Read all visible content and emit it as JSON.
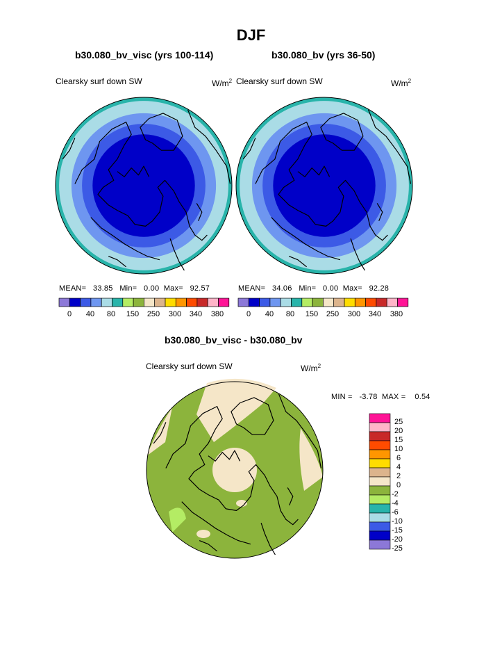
{
  "page": {
    "title": "DJF",
    "panels": [
      {
        "subtitle": "b30.080_bv_visc (yrs 100-114)",
        "field": "Clearsky surf down SW",
        "units": "W/m",
        "units_exp": "2",
        "stats": {
          "mean_label": "MEAN=",
          "mean": "33.85",
          "min_label": "Min=",
          "min": "0.00",
          "max_label": "Max=",
          "max": "92.57"
        }
      },
      {
        "subtitle": "b30.080_bv (yrs 36-50)",
        "field": "Clearsky surf down SW",
        "units": "W/m",
        "units_exp": "2",
        "stats": {
          "mean_label": "MEAN=",
          "mean": "34.06",
          "min_label": "Min=",
          "min": "0.00",
          "max_label": "Max=",
          "max": "92.28"
        }
      }
    ],
    "diff_panel": {
      "subtitle": "b30.080_bv_visc - b30.080_bv",
      "field": "Clearsky surf down SW",
      "units": "W/m",
      "units_exp": "2",
      "stats": {
        "min_label": "MIN =",
        "min": "-3.78",
        "max_label": "MAX =",
        "max": "0.54"
      }
    }
  },
  "colors": {
    "abs_scale": [
      "#8c78d8",
      "#0000c8",
      "#3c5ae6",
      "#6e96f0",
      "#aadce6",
      "#28b4aa",
      "#b4ec64",
      "#8cb43c",
      "#f5e6c8",
      "#dcb48c",
      "#ffdc00",
      "#ff9600",
      "#ff4b00",
      "#c82828",
      "#ffb4c8",
      "#ff1496"
    ],
    "diff_scale": [
      "#8c78d8",
      "#0000c8",
      "#3c5ae6",
      "#aadce6",
      "#28b4aa",
      "#b4ec64",
      "#8cb43c",
      "#f5e6c8",
      "#dcb48c",
      "#ffdc00",
      "#ff9600",
      "#ff4b00",
      "#c82828",
      "#ffb4c8",
      "#ff1496"
    ],
    "land_line": "#000000"
  },
  "chart_data": [
    {
      "type": "heatmap",
      "projection": "polar stereographic (north)",
      "title": "b30.080_bv_visc (yrs 100-114)",
      "variable": "Clearsky surf down SW",
      "units": "W/m2",
      "colorbar_ticks": [
        "0",
        "40",
        "80",
        "150",
        "250",
        "300",
        "340",
        "380"
      ],
      "levels_W_m2": [
        0,
        20,
        40,
        60,
        80,
        100,
        150,
        200,
        250,
        275,
        300,
        320,
        340,
        360,
        380
      ],
      "rings_from_pole": [
        "0 (dark blue)",
        "20-40",
        "40-60",
        "60-80",
        "80-100"
      ],
      "mean": 33.85,
      "min": 0.0,
      "max": 92.57
    },
    {
      "type": "heatmap",
      "projection": "polar stereographic (north)",
      "title": "b30.080_bv (yrs 36-50)",
      "variable": "Clearsky surf down SW",
      "units": "W/m2",
      "colorbar_ticks": [
        "0",
        "40",
        "80",
        "150",
        "250",
        "300",
        "340",
        "380"
      ],
      "levels_W_m2": [
        0,
        20,
        40,
        60,
        80,
        100,
        150,
        200,
        250,
        275,
        300,
        320,
        340,
        360,
        380
      ],
      "rings_from_pole": [
        "0 (dark blue)",
        "20-40",
        "40-60",
        "60-80",
        "80-100"
      ],
      "mean": 34.06,
      "min": 0.0,
      "max": 92.28
    },
    {
      "type": "heatmap",
      "projection": "polar stereographic (north)",
      "title": "b30.080_bv_visc - b30.080_bv",
      "variable": "Clearsky surf down SW",
      "units": "W/m2",
      "colorbar_ticks": [
        "25",
        "20",
        "15",
        "10",
        "6",
        "4",
        "2",
        "0",
        "-2",
        "-4",
        "-6",
        "-10",
        "-15",
        "-20",
        "-25"
      ],
      "dominant_range": "-2 to 0",
      "min": -3.78,
      "max": 0.54
    }
  ]
}
